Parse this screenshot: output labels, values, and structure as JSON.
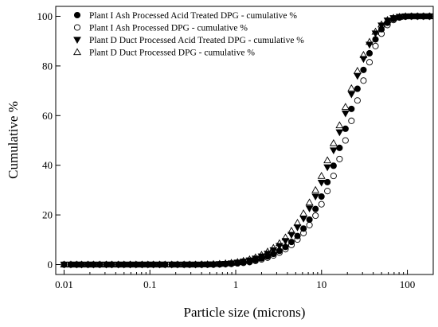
{
  "chart_data": {
    "type": "scatter",
    "title": "",
    "xlabel": "Particle size (microns)",
    "ylabel": "Cumulative %",
    "xscale": "log",
    "xlim": [
      0.008,
      200
    ],
    "ylim": [
      -4,
      104
    ],
    "x_ticks": [
      {
        "value": 0.01,
        "label": "0.01"
      },
      {
        "value": 0.1,
        "label": "0.1"
      },
      {
        "value": 1,
        "label": "1"
      },
      {
        "value": 10,
        "label": "10"
      },
      {
        "value": 100,
        "label": "100"
      }
    ],
    "y_ticks": [
      {
        "value": 0,
        "label": "0"
      },
      {
        "value": 20,
        "label": "20"
      },
      {
        "value": 40,
        "label": "40"
      },
      {
        "value": 60,
        "label": "60"
      },
      {
        "value": 80,
        "label": "80"
      },
      {
        "value": 100,
        "label": "100"
      }
    ],
    "grid": false,
    "legend_position": "top-left",
    "series": [
      {
        "name": "Plant I Ash Processed Acid Treated DPG - cumulative %",
        "marker": "filled-circle",
        "points": [
          [
            0.01,
            0
          ],
          [
            0.012,
            0
          ],
          [
            0.014,
            0
          ],
          [
            0.016,
            0
          ],
          [
            0.019,
            0
          ],
          [
            0.022,
            0
          ],
          [
            0.026,
            0
          ],
          [
            0.031,
            0
          ],
          [
            0.036,
            0
          ],
          [
            0.043,
            0
          ],
          [
            0.05,
            0
          ],
          [
            0.059,
            0
          ],
          [
            0.069,
            0
          ],
          [
            0.081,
            0
          ],
          [
            0.095,
            0
          ],
          [
            0.11,
            0
          ],
          [
            0.13,
            0
          ],
          [
            0.15,
            0
          ],
          [
            0.18,
            0
          ],
          [
            0.21,
            0
          ],
          [
            0.25,
            0
          ],
          [
            0.29,
            0
          ],
          [
            0.34,
            0
          ],
          [
            0.4,
            0
          ],
          [
            0.47,
            0
          ],
          [
            0.55,
            0
          ],
          [
            0.65,
            0.1
          ],
          [
            0.76,
            0.2
          ],
          [
            0.89,
            0.3
          ],
          [
            1.05,
            0.5
          ],
          [
            1.23,
            0.8
          ],
          [
            1.45,
            1.2
          ],
          [
            1.7,
            1.8
          ],
          [
            2.0,
            2.5
          ],
          [
            2.35,
            3.3
          ],
          [
            2.75,
            4.3
          ],
          [
            3.23,
            5.5
          ],
          [
            3.8,
            7.1
          ],
          [
            4.46,
            9.1
          ],
          [
            5.24,
            11.5
          ],
          [
            6.16,
            14.5
          ],
          [
            7.23,
            18.1
          ],
          [
            8.5,
            22.4
          ],
          [
            9.98,
            27.4
          ],
          [
            11.7,
            33.2
          ],
          [
            13.8,
            39.8
          ],
          [
            16.2,
            47.0
          ],
          [
            19.0,
            54.7
          ],
          [
            22.3,
            62.7
          ],
          [
            26.2,
            70.8
          ],
          [
            30.8,
            78.4
          ],
          [
            36.2,
            85.1
          ],
          [
            42.5,
            90.7
          ],
          [
            49.9,
            94.8
          ],
          [
            58.6,
            97.4
          ],
          [
            68.9,
            98.9
          ],
          [
            80.9,
            99.6
          ],
          [
            95.0,
            99.9
          ],
          [
            111.6,
            100
          ],
          [
            131.1,
            100
          ],
          [
            154.0,
            100
          ],
          [
            180.9,
            100
          ]
        ]
      },
      {
        "name": "Plant I Ash Processed DPG - cumulative %",
        "marker": "open-circle",
        "points": [
          [
            0.01,
            0
          ],
          [
            0.012,
            0
          ],
          [
            0.014,
            0
          ],
          [
            0.016,
            0
          ],
          [
            0.019,
            0
          ],
          [
            0.022,
            0
          ],
          [
            0.026,
            0
          ],
          [
            0.031,
            0
          ],
          [
            0.036,
            0
          ],
          [
            0.043,
            0
          ],
          [
            0.05,
            0
          ],
          [
            0.059,
            0
          ],
          [
            0.069,
            0
          ],
          [
            0.081,
            0
          ],
          [
            0.095,
            0
          ],
          [
            0.11,
            0
          ],
          [
            0.13,
            0
          ],
          [
            0.15,
            0
          ],
          [
            0.18,
            0
          ],
          [
            0.21,
            0
          ],
          [
            0.25,
            0
          ],
          [
            0.29,
            0
          ],
          [
            0.34,
            0
          ],
          [
            0.4,
            0
          ],
          [
            0.47,
            0
          ],
          [
            0.55,
            0
          ],
          [
            0.65,
            0.1
          ],
          [
            0.76,
            0.2
          ],
          [
            0.89,
            0.3
          ],
          [
            1.05,
            0.5
          ],
          [
            1.23,
            0.7
          ],
          [
            1.45,
            1.0
          ],
          [
            1.7,
            1.5
          ],
          [
            2.0,
            2.1
          ],
          [
            2.35,
            2.8
          ],
          [
            2.75,
            3.7
          ],
          [
            3.23,
            4.8
          ],
          [
            3.8,
            6.2
          ],
          [
            4.46,
            7.9
          ],
          [
            5.24,
            10.1
          ],
          [
            6.16,
            12.7
          ],
          [
            7.23,
            15.9
          ],
          [
            8.5,
            19.7
          ],
          [
            9.98,
            24.3
          ],
          [
            11.7,
            29.6
          ],
          [
            13.8,
            35.7
          ],
          [
            16.2,
            42.5
          ],
          [
            19.0,
            50.0
          ],
          [
            22.3,
            57.9
          ],
          [
            26.2,
            66.1
          ],
          [
            30.8,
            74.1
          ],
          [
            36.2,
            81.5
          ],
          [
            42.5,
            88.0
          ],
          [
            49.9,
            93.0
          ],
          [
            58.6,
            96.5
          ],
          [
            68.9,
            98.5
          ],
          [
            80.9,
            99.5
          ],
          [
            95.0,
            99.9
          ],
          [
            111.6,
            100
          ],
          [
            131.1,
            100
          ],
          [
            154.0,
            100
          ],
          [
            180.9,
            100
          ]
        ]
      },
      {
        "name": "Plant D Duct Processed Acid Treated DPG - cumulative %",
        "marker": "filled-triangle-down",
        "points": [
          [
            0.01,
            0
          ],
          [
            0.012,
            0
          ],
          [
            0.014,
            0
          ],
          [
            0.016,
            0
          ],
          [
            0.019,
            0
          ],
          [
            0.022,
            0
          ],
          [
            0.026,
            0
          ],
          [
            0.031,
            0
          ],
          [
            0.036,
            0
          ],
          [
            0.043,
            0
          ],
          [
            0.05,
            0
          ],
          [
            0.059,
            0
          ],
          [
            0.069,
            0
          ],
          [
            0.081,
            0
          ],
          [
            0.095,
            0
          ],
          [
            0.11,
            0
          ],
          [
            0.13,
            0
          ],
          [
            0.15,
            0
          ],
          [
            0.18,
            0
          ],
          [
            0.21,
            0
          ],
          [
            0.25,
            0
          ],
          [
            0.29,
            0
          ],
          [
            0.34,
            0
          ],
          [
            0.4,
            0
          ],
          [
            0.47,
            0.1
          ],
          [
            0.55,
            0.1
          ],
          [
            0.65,
            0.2
          ],
          [
            0.76,
            0.3
          ],
          [
            0.89,
            0.5
          ],
          [
            1.05,
            0.8
          ],
          [
            1.23,
            1.2
          ],
          [
            1.45,
            1.7
          ],
          [
            1.7,
            2.4
          ],
          [
            2.0,
            3.3
          ],
          [
            2.35,
            4.4
          ],
          [
            2.75,
            5.8
          ],
          [
            3.23,
            7.5
          ],
          [
            3.8,
            9.5
          ],
          [
            4.46,
            12.0
          ],
          [
            5.24,
            15.0
          ],
          [
            6.16,
            18.5
          ],
          [
            7.23,
            22.6
          ],
          [
            8.5,
            27.4
          ],
          [
            9.98,
            33.0
          ],
          [
            11.7,
            39.2
          ],
          [
            13.8,
            46.0
          ],
          [
            16.2,
            53.3
          ],
          [
            19.0,
            60.9
          ],
          [
            22.3,
            68.6
          ],
          [
            26.2,
            76.0
          ],
          [
            30.8,
            82.8
          ],
          [
            36.2,
            88.6
          ],
          [
            42.5,
            93.1
          ],
          [
            49.9,
            96.3
          ],
          [
            58.6,
            98.3
          ],
          [
            68.9,
            99.3
          ],
          [
            80.9,
            99.8
          ],
          [
            95.0,
            100
          ],
          [
            111.6,
            100
          ],
          [
            131.1,
            100
          ],
          [
            154.0,
            100
          ],
          [
            180.9,
            100
          ]
        ]
      },
      {
        "name": "Plant D Duct Processed DPG - cumulative %",
        "marker": "open-triangle-up",
        "points": [
          [
            0.01,
            0
          ],
          [
            0.012,
            0
          ],
          [
            0.014,
            0
          ],
          [
            0.016,
            0
          ],
          [
            0.019,
            0
          ],
          [
            0.022,
            0
          ],
          [
            0.026,
            0
          ],
          [
            0.031,
            0
          ],
          [
            0.036,
            0
          ],
          [
            0.043,
            0
          ],
          [
            0.05,
            0
          ],
          [
            0.059,
            0
          ],
          [
            0.069,
            0
          ],
          [
            0.081,
            0
          ],
          [
            0.095,
            0
          ],
          [
            0.11,
            0
          ],
          [
            0.13,
            0
          ],
          [
            0.15,
            0
          ],
          [
            0.18,
            0
          ],
          [
            0.21,
            0
          ],
          [
            0.25,
            0
          ],
          [
            0.29,
            0
          ],
          [
            0.34,
            0
          ],
          [
            0.4,
            0.1
          ],
          [
            0.47,
            0.1
          ],
          [
            0.55,
            0.2
          ],
          [
            0.65,
            0.3
          ],
          [
            0.76,
            0.5
          ],
          [
            0.89,
            0.7
          ],
          [
            1.05,
            1.0
          ],
          [
            1.23,
            1.5
          ],
          [
            1.45,
            2.1
          ],
          [
            1.7,
            2.9
          ],
          [
            2.0,
            3.9
          ],
          [
            2.35,
            5.2
          ],
          [
            2.75,
            6.7
          ],
          [
            3.23,
            8.6
          ],
          [
            3.8,
            10.9
          ],
          [
            4.46,
            13.6
          ],
          [
            5.24,
            16.8
          ],
          [
            6.16,
            20.6
          ],
          [
            7.23,
            25.0
          ],
          [
            8.5,
            30.0
          ],
          [
            9.98,
            35.7
          ],
          [
            11.7,
            42.0
          ],
          [
            13.8,
            48.9
          ],
          [
            16.2,
            56.1
          ],
          [
            19.0,
            63.5
          ],
          [
            22.3,
            71.0
          ],
          [
            26.2,
            78.0
          ],
          [
            30.8,
            84.4
          ],
          [
            36.2,
            89.7
          ],
          [
            42.5,
            93.8
          ],
          [
            49.9,
            96.7
          ],
          [
            58.6,
            98.5
          ],
          [
            68.9,
            99.4
          ],
          [
            80.9,
            99.8
          ],
          [
            95.0,
            100
          ],
          [
            111.6,
            100
          ],
          [
            131.1,
            100
          ],
          [
            154.0,
            100
          ],
          [
            180.9,
            100
          ]
        ]
      }
    ]
  }
}
